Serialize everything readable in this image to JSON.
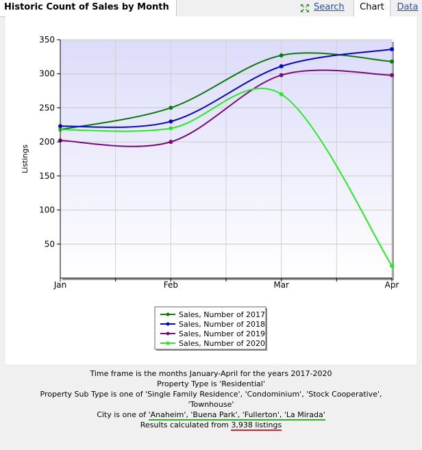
{
  "header": {
    "title": "Historic Count of Sales by Month",
    "tabs": {
      "search": "Search",
      "chart": "Chart",
      "data": "Data"
    }
  },
  "chart_data": {
    "type": "line",
    "x": [
      "Jan",
      "Feb",
      "Mar",
      "Apr"
    ],
    "ylabel": "Listings",
    "ylim": [
      0,
      350
    ],
    "yticks": [
      50,
      100,
      150,
      200,
      250,
      300,
      350
    ],
    "grid": true,
    "legend": "bottom-center",
    "series": [
      {
        "name": "Sales, Number of 2017",
        "color": "#0a7a0a",
        "values": [
          218,
          250,
          327,
          318
        ]
      },
      {
        "name": "Sales, Number of 2018",
        "color": "#0000dd",
        "values": [
          223,
          230,
          311,
          336
        ]
      },
      {
        "name": "Sales, Number of 2019",
        "color": "#7a0a7a",
        "values": [
          202,
          200,
          298,
          298
        ]
      },
      {
        "name": "Sales, Number of 2020",
        "color": "#22ee22",
        "values": [
          218,
          220,
          270,
          18
        ]
      }
    ]
  },
  "info": {
    "timeframe": "Time frame is the months January-April for the years 2017-2020",
    "property_type": "Property Type is 'Residential'",
    "subtype_line1": "Property Sub Type is one of 'Single Family Residence', 'Condominium', 'Stock Cooperative',",
    "subtype_line2": "'Townhouse'",
    "city_prefix": "City is one of ",
    "city_list": "'Anaheim', 'Buena Park', 'Fullerton', 'La Mirada'",
    "results_prefix": "Results calculated from ",
    "results_count": "3,938 listings"
  }
}
